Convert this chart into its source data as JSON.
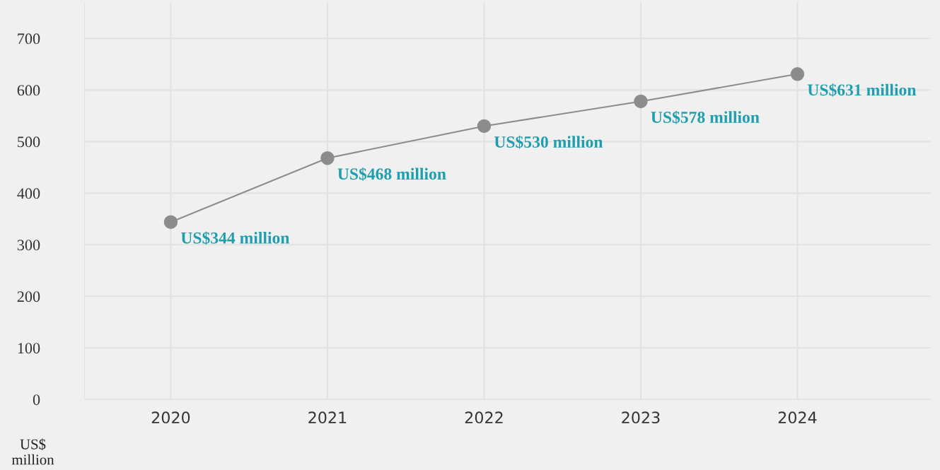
{
  "chart_data": {
    "type": "line",
    "ylabel": "US$\nmillion",
    "categories": [
      "2020",
      "2021",
      "2022",
      "2023",
      "2024"
    ],
    "series": [
      {
        "color": "#8c8c8c",
        "values": [
          344,
          468,
          530,
          578,
          631
        ],
        "value_labels": [
          "US$344 million",
          "US$468 million",
          "US$530 million",
          "US$578 million",
          "US$631 million"
        ]
      }
    ],
    "ylim": [
      0,
      770
    ],
    "yticks": [
      0,
      100,
      200,
      300,
      400,
      500,
      600,
      700
    ],
    "grid": true,
    "marker": "circle",
    "line_style": "solid",
    "legend": false
  }
}
